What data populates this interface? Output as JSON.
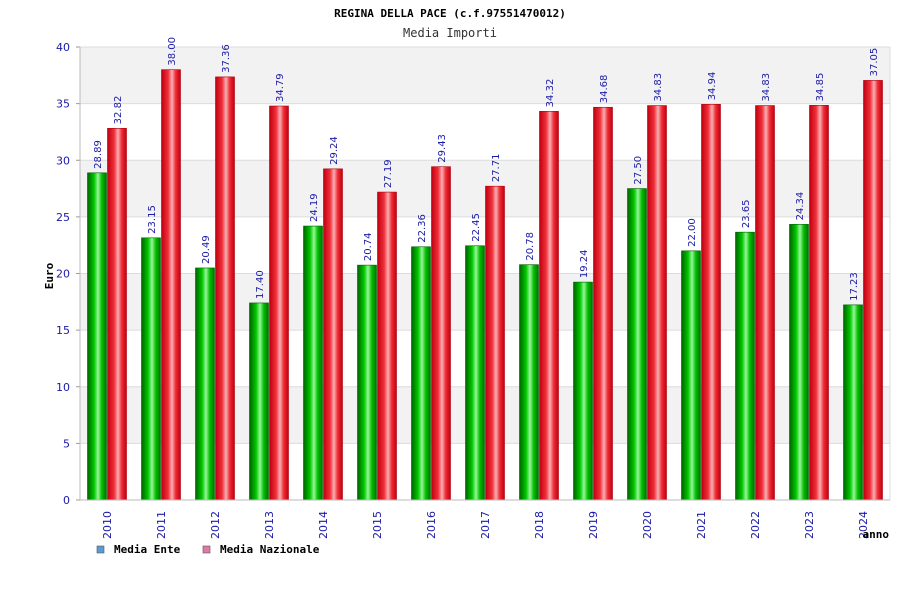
{
  "chart_data": {
    "type": "bar",
    "title": "REGINA DELLA PACE (c.f.97551470012)",
    "subtitle": "Media Importi",
    "xlabel": "anno",
    "ylabel": "Euro",
    "ylim": [
      0,
      40
    ],
    "yticks": [
      0,
      5,
      10,
      15,
      20,
      25,
      30,
      35,
      40
    ],
    "grid": true,
    "legend_position": "bottom-left",
    "categories": [
      "2010",
      "2011",
      "2012",
      "2013",
      "2014",
      "2015",
      "2016",
      "2017",
      "2018",
      "2019",
      "2020",
      "2021",
      "2022",
      "2023",
      "2024"
    ],
    "series": [
      {
        "name": "Media Ente",
        "color": "#00b000",
        "legend_color": "#5b9bd5",
        "values": [
          28.89,
          23.15,
          20.49,
          17.4,
          24.19,
          20.74,
          22.36,
          22.45,
          20.78,
          19.24,
          27.5,
          22.0,
          23.65,
          24.34,
          17.23
        ]
      },
      {
        "name": "Media Nazionale",
        "color": "#e8202a",
        "legend_color": "#e377a8",
        "values": [
          32.82,
          38.0,
          37.36,
          34.79,
          29.24,
          27.19,
          29.43,
          27.71,
          34.32,
          34.68,
          34.83,
          34.94,
          34.83,
          34.85,
          37.05
        ]
      }
    ]
  }
}
